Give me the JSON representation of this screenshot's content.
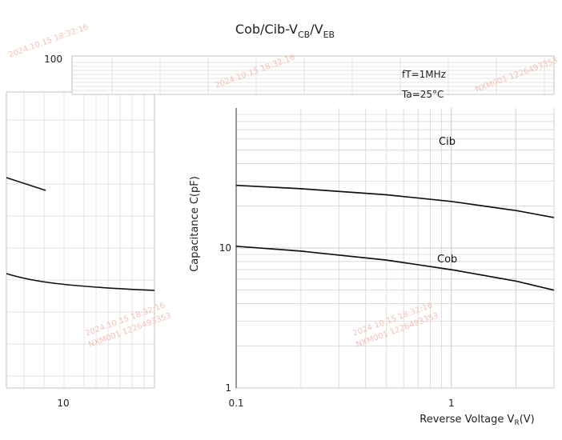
{
  "chart_data": {
    "type": "line",
    "title": "Cob/Cib-V",
    "title_sub1": "CB",
    "title_mid": "/V",
    "title_sub2": "EB",
    "xlabel_main": "Reverse Voltage  V",
    "xlabel_sub": "R",
    "xlabel_unit": "(V)",
    "ylabel": "Capacitance  C(pF)",
    "x_scale": "log",
    "y_scale": "log",
    "xlim": [
      0.1,
      3
    ],
    "ylim": [
      1,
      100
    ],
    "x_ticks": [
      {
        "value": 0.1,
        "label": "0.1"
      },
      {
        "value": 1,
        "label": "1"
      }
    ],
    "y_ticks": [
      {
        "value": 1,
        "label": "1"
      },
      {
        "value": 10,
        "label": "10"
      },
      {
        "value": 100,
        "label": "100"
      }
    ],
    "grid": true,
    "annotations": [
      "fT=1MHz",
      "Ta=25°C"
    ],
    "series": [
      {
        "name": "Cib",
        "x": [
          0.1,
          0.2,
          0.5,
          1,
          2,
          3
        ],
        "y": [
          28,
          26.5,
          24,
          21.5,
          18.5,
          16.5
        ]
      },
      {
        "name": "Cob",
        "x": [
          0.1,
          0.2,
          0.5,
          1,
          2,
          3
        ],
        "y": [
          10.3,
          9.5,
          8.2,
          7,
          5.8,
          5
        ]
      }
    ],
    "left_fragment_ticks": [
      {
        "label": "10"
      }
    ],
    "watermarks": [
      "2024.10.15 18:32:16",
      "NXM001 1226493353"
    ]
  },
  "colors": {
    "curve": "#111111",
    "grid": "#c8c8c8",
    "frame": "#333333",
    "watermark": "#f1b7a8"
  }
}
